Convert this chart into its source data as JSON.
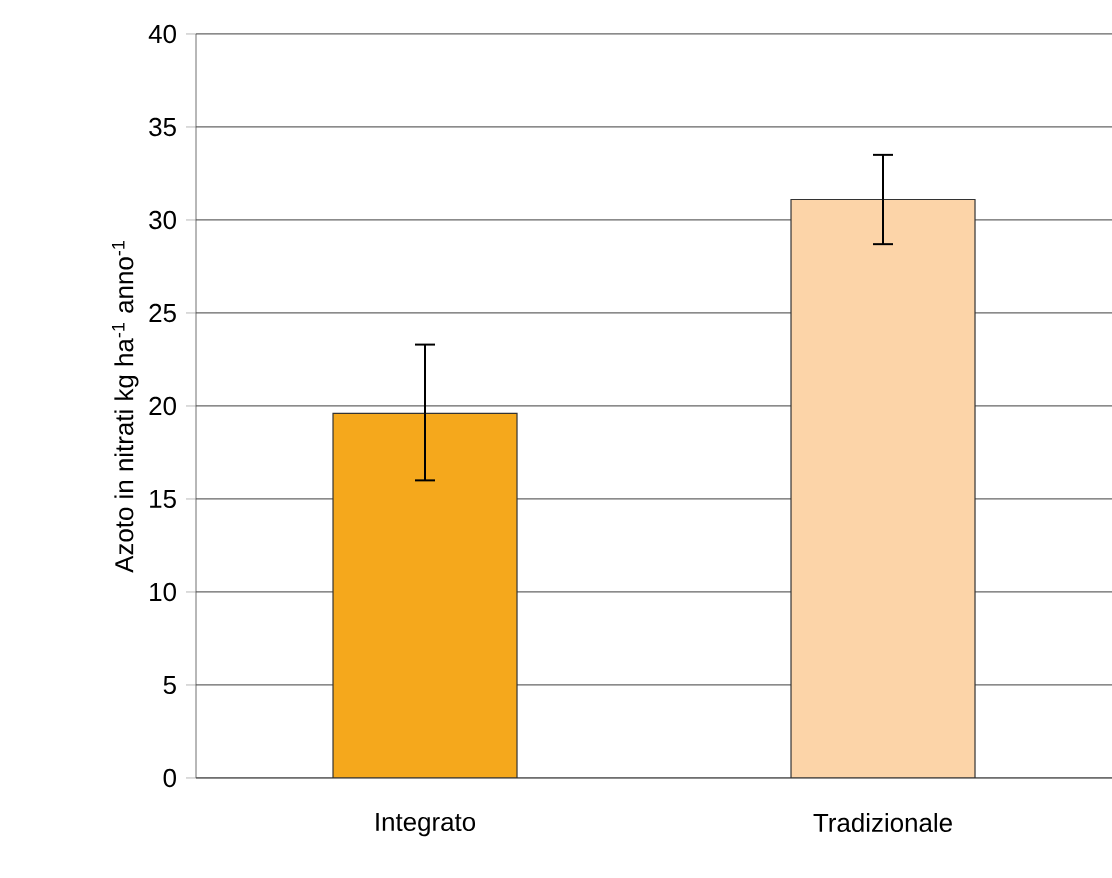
{
  "chart_data": {
    "type": "bar",
    "ylabel": "Azoto in nitrati kg ha$^{-1}$ anno$^{-1}$",
    "categories": [
      "Integrato",
      "Tradizionale"
    ],
    "values": [
      19.6,
      31.1
    ],
    "colors": [
      "#f5a81c",
      "#fcd4a8"
    ],
    "errors": [
      [
        16.0,
        23.3
      ],
      [
        28.7,
        33.5
      ]
    ],
    "ylim": [
      0,
      40
    ],
    "yticks": [
      0,
      5,
      10,
      15,
      20,
      25,
      30,
      35,
      40
    ],
    "grid": "y"
  }
}
